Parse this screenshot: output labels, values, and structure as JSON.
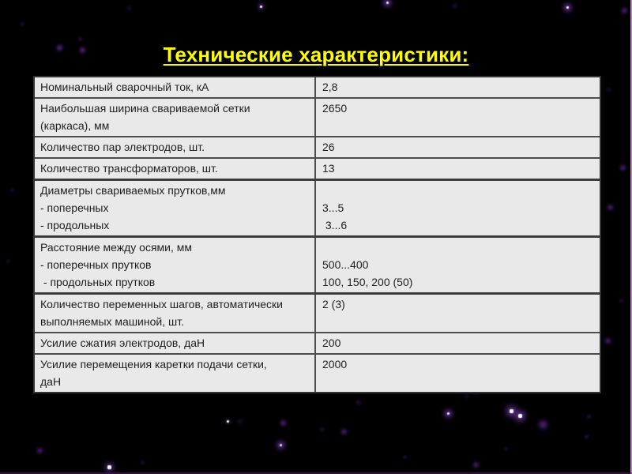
{
  "title": "Технические характеристики:",
  "colors": {
    "background": "#000000",
    "title_text": "#ffff00",
    "table_cell_bg": "#e9e9e9",
    "table_border": "#4d4d4d",
    "table_text": "#1f1f1f",
    "star_glow": "#8a3fe0",
    "right_edge_line": "#c9a3cd"
  },
  "table": {
    "rows": [
      {
        "label": "Номинальный сварочный ток, кА",
        "value": "2,8"
      },
      {
        "label": "Наибольшая ширина свариваемой сетки\n(каркаса), мм",
        "value": "2650"
      },
      {
        "label": "Количество пар электродов, шт.",
        "value": "26"
      },
      {
        "label": "Количество трансформаторов, шт.",
        "value": "13"
      },
      {
        "label": "Диаметры свариваемых прутков,мм\n- поперечных\n- продольных",
        "value": "\n3...5\n 3...6"
      },
      {
        "label": "Расстояние между осями, мм\n- поперечных прутков\n - продольных прутков",
        "value": "\n500...400\n100, 150, 200 (50)"
      },
      {
        "label": "Количество переменных шагов, автоматически\nвыполняемых машиной, шт.",
        "value": "2 (3)"
      },
      {
        "label": "Усилие сжатия электродов, даН",
        "value": "200"
      },
      {
        "label": "Усилие перемещения каретки подачи сетки,\nдаН",
        "value": "2000"
      }
    ]
  }
}
